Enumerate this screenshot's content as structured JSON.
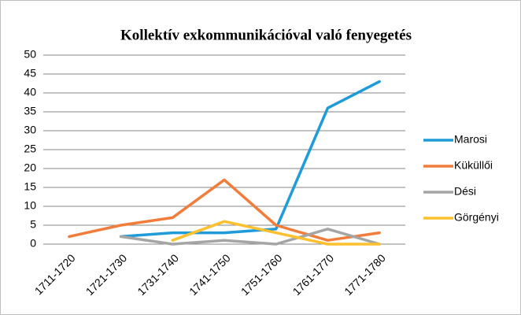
{
  "chart_data": {
    "type": "line",
    "title": "Kollektív exkommunikációval való fenyegetés",
    "categories": [
      "1711-1720",
      "1721-1730",
      "1731-1740",
      "1741-1750",
      "1751-1760",
      "1761-1770",
      "1771-1780"
    ],
    "series": [
      {
        "name": "Marosi",
        "color": "#1f9bd7",
        "values": [
          null,
          2,
          3,
          3,
          4,
          36,
          43
        ]
      },
      {
        "name": "Küküllői",
        "color": "#f07d3c",
        "values": [
          2,
          5,
          7,
          17,
          5,
          1,
          3
        ]
      },
      {
        "name": "Dési",
        "color": "#a5a5a5",
        "values": [
          null,
          2,
          0,
          1,
          0,
          4,
          0
        ]
      },
      {
        "name": "Görgényi",
        "color": "#fdc02f",
        "values": [
          null,
          null,
          1,
          6,
          3,
          0,
          0
        ]
      }
    ],
    "ylim": [
      0,
      50
    ],
    "yticks": [
      0,
      5,
      10,
      15,
      20,
      25,
      30,
      35,
      40,
      45,
      50
    ],
    "grid": true,
    "legend": "right"
  }
}
